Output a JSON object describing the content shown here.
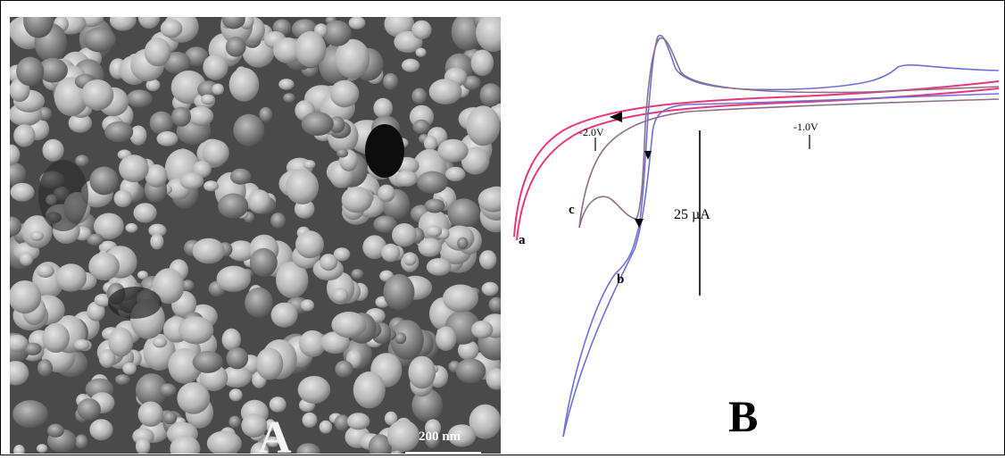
{
  "panel_a": {
    "label": "A",
    "scale_bar_text": "200 nm"
  },
  "panel_b": {
    "label": "B",
    "potential_labels": [
      "-2.0V",
      "-1.0V"
    ],
    "current_scale_text": "25 µA",
    "curve_labels": [
      "a",
      "b",
      "c"
    ],
    "colors": {
      "a": "#e8387a",
      "b": "#6f6fd8",
      "c": "#8e6f88"
    }
  }
}
